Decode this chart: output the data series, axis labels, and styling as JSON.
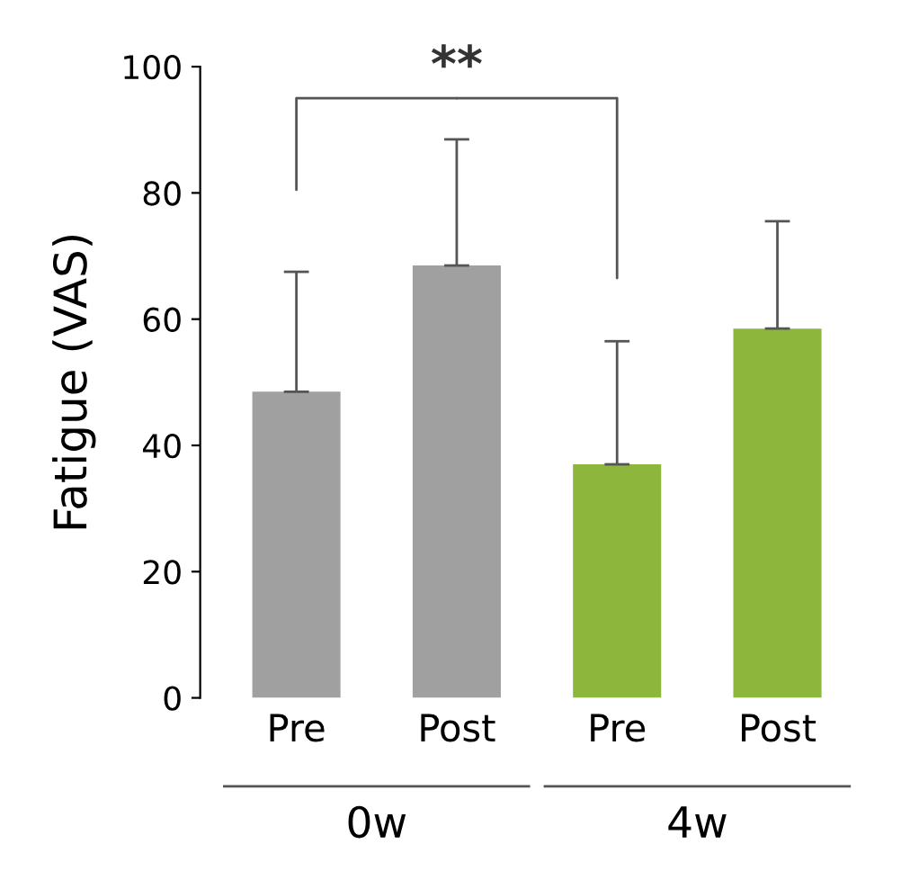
{
  "chart_data": {
    "type": "bar",
    "ylabel": "Fatigue (VAS)",
    "categories": [
      "Pre",
      "Post",
      "Pre",
      "Post"
    ],
    "values": [
      48.5,
      68.5,
      37,
      58.5
    ],
    "colors": [
      "#a0a0a0",
      "#a0a0a0",
      "#8cb63c",
      "#8cb63c"
    ],
    "errors": [
      [
        48.5,
        67.5
      ],
      [
        68.5,
        88.5
      ],
      [
        37,
        56.5
      ],
      [
        58.5,
        75.5
      ]
    ],
    "ylim": [
      0,
      100
    ],
    "yticks": [
      0,
      20,
      40,
      60,
      80,
      100
    ],
    "grid": false,
    "legend": false,
    "annotations": [
      "**",
      "0w",
      "4w"
    ]
  }
}
